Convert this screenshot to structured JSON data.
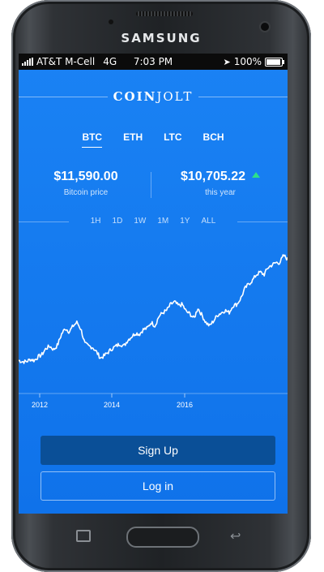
{
  "device": {
    "brand": "SAMSUNG"
  },
  "status_bar": {
    "carrier": "AT&T M-Cell",
    "network": "4G",
    "time": "7:03 PM",
    "battery": "100%"
  },
  "app": {
    "logo_bold": "COIN",
    "logo_light": "JOLT"
  },
  "coin_tabs": [
    {
      "label": "BTC",
      "active": true
    },
    {
      "label": "ETH",
      "active": false
    },
    {
      "label": "LTC",
      "active": false
    },
    {
      "label": "BCH",
      "active": false
    }
  ],
  "prices": {
    "current": {
      "value": "$11,590.00",
      "label": "Bitcoin price"
    },
    "change": {
      "value": "$10,705.22",
      "label": "this year"
    }
  },
  "time_ranges": [
    "1H",
    "1D",
    "1W",
    "1M",
    "1Y",
    "ALL"
  ],
  "chart_data": {
    "type": "line",
    "x_tick_labels": [
      "2012",
      "2014",
      "2016"
    ],
    "y_relative": [
      0.08,
      0.07,
      0.07,
      0.09,
      0.08,
      0.11,
      0.13,
      0.18,
      0.2,
      0.17,
      0.21,
      0.3,
      0.35,
      0.32,
      0.37,
      0.4,
      0.34,
      0.22,
      0.2,
      0.19,
      0.15,
      0.1,
      0.12,
      0.15,
      0.18,
      0.2,
      0.22,
      0.2,
      0.25,
      0.28,
      0.31,
      0.3,
      0.34,
      0.35,
      0.4,
      0.37,
      0.45,
      0.48,
      0.5,
      0.55,
      0.57,
      0.54,
      0.55,
      0.49,
      0.47,
      0.43,
      0.52,
      0.46,
      0.4,
      0.37,
      0.41,
      0.46,
      0.48,
      0.5,
      0.48,
      0.54,
      0.55,
      0.6,
      0.68,
      0.72,
      0.75,
      0.8,
      0.82,
      0.8,
      0.86,
      0.88,
      0.9,
      0.9,
      0.96,
      0.93
    ],
    "colors": {
      "line": "#ffffff",
      "up_arrow": "#2ce08a"
    }
  },
  "buttons": {
    "signup": "Sign Up",
    "login": "Log in"
  }
}
